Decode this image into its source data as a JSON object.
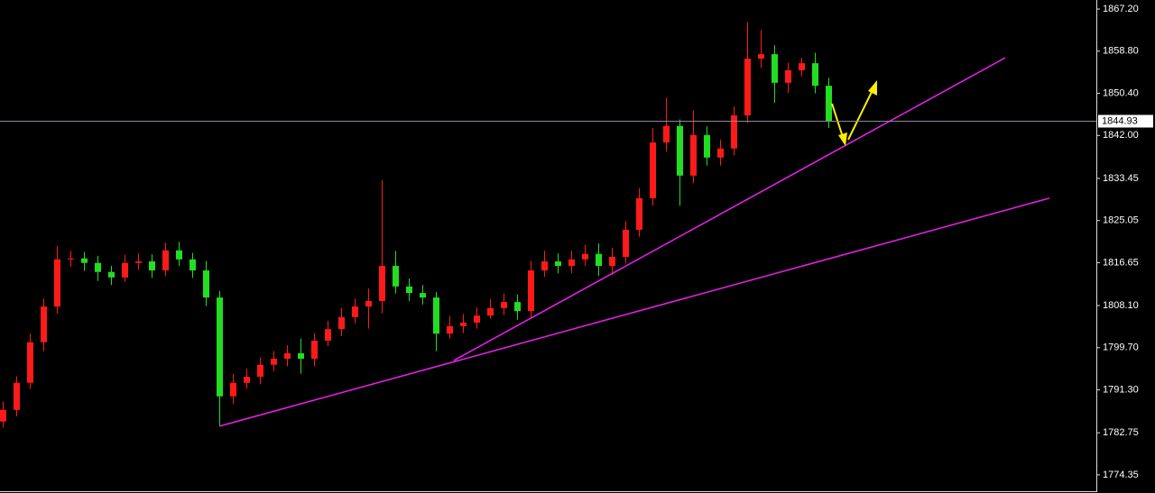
{
  "chart_data": {
    "type": "candlestick",
    "up_color": "#ff1a1a",
    "down_color": "#22dd22",
    "xlim": [
      -0.2,
      80.8
    ],
    "ylim": [
      1771.1,
      1869.0
    ],
    "yticks": [
      {
        "value": 1867.2,
        "label": "1867.20"
      },
      {
        "value": 1858.8,
        "label": "1858.80"
      },
      {
        "value": 1850.4,
        "label": "1850.40"
      },
      {
        "value": 1842,
        "label": "1842.00"
      },
      1833.45,
      1825.05,
      1816.65,
      {
        "value": 1808.1,
        "label": "1808.10"
      },
      {
        "value": 1799.7,
        "label": "1799.70"
      },
      {
        "value": 1791.3,
        "label": "1791.30"
      },
      1782.75,
      1774.35
    ],
    "current_price": 1844.93,
    "open": [
      1785.0,
      1787.3,
      1792.7,
      1800.8,
      1807.9,
      1817.3,
      1817.5,
      1816.6,
      1814.8,
      1813.7,
      1816.6,
      1816.9,
      1815.1,
      1819.1,
      1817.3,
      1815.1,
      1809.7,
      1790.0,
      1792.7,
      1793.9,
      1796.3,
      1797.5,
      1798.6,
      1797.5,
      1801.1,
      1803.4,
      1805.8,
      1807.9,
      1809.0,
      1816.0,
      1811.9,
      1810.6,
      1809.7,
      1802.5,
      1804.0,
      1804.7,
      1806.1,
      1807.6,
      1808.8,
      1807.0,
      1815.1,
      1816.9,
      1816.0,
      1817.3,
      1818.4,
      1816.0,
      1817.8,
      1823.2,
      1829.5,
      1840.6,
      1843.9,
      1834.0,
      1842.1,
      1837.6,
      1839.4,
      1846.0,
      1857.3,
      1858.2,
      1852.5,
      1855.0,
      1856.4,
      1851.9
    ],
    "high": [
      1789,
      1794,
      1802.5,
      1809.5,
      1820,
      1819,
      1818.8,
      1818,
      1816,
      1818.2,
      1818.5,
      1818.3,
      1820.6,
      1820.8,
      1818.6,
      1817,
      1811,
      1794.5,
      1795.5,
      1797.8,
      1799,
      1800.2,
      1801.5,
      1802.6,
      1805,
      1807.6,
      1809.5,
      1811.5,
      1833.1,
      1819,
      1813.5,
      1812.2,
      1810.8,
      1806,
      1806.4,
      1807.8,
      1809.4,
      1810.5,
      1810.3,
      1817,
      1819,
      1818.5,
      1819,
      1820.2,
      1820.5,
      1819.6,
      1825,
      1831.5,
      1843.5,
      1849.5,
      1845.2,
      1847,
      1843.8,
      1841.2,
      1847.8,
      1864.6,
      1863,
      1860,
      1856.5,
      1857.5,
      1858.5,
      1853.5
    ],
    "low": [
      1783.8,
      1786,
      1791.5,
      1799,
      1806.5,
      1815.8,
      1815,
      1813,
      1812.2,
      1812.8,
      1815.2,
      1813.6,
      1814,
      1816,
      1813.6,
      1808,
      1784.1,
      1788.5,
      1791.5,
      1792.4,
      1795,
      1796,
      1794.5,
      1796,
      1800,
      1802,
      1804.5,
      1803.5,
      1806.5,
      1810.5,
      1809,
      1808.3,
      1799.0,
      1801.5,
      1802.6,
      1803.5,
      1805.5,
      1806.2,
      1805.3,
      1805.5,
      1813.8,
      1814.5,
      1814.6,
      1816,
      1814,
      1814.2,
      1816.5,
      1821.8,
      1828,
      1838.8,
      1828.0,
      1832.5,
      1836,
      1836,
      1838,
      1844.5,
      1855.5,
      1848.5,
      1850.5,
      1853.8,
      1850.4,
      1843.5
    ],
    "close": [
      1787.3,
      1792.7,
      1800.8,
      1807.9,
      1817.3,
      1817.5,
      1816.6,
      1814.8,
      1813.7,
      1816.6,
      1816.9,
      1815.1,
      1819.1,
      1817.3,
      1815.1,
      1809.7,
      1790.0,
      1792.7,
      1793.9,
      1796.3,
      1797.5,
      1798.6,
      1797.5,
      1801.1,
      1803.4,
      1805.8,
      1807.9,
      1809.0,
      1816.0,
      1811.9,
      1810.6,
      1809.7,
      1802.5,
      1804.0,
      1804.7,
      1806.1,
      1807.6,
      1808.8,
      1807.0,
      1815.1,
      1816.9,
      1816.0,
      1817.3,
      1818.4,
      1816.0,
      1817.8,
      1823.2,
      1829.5,
      1840.6,
      1843.9,
      1834.0,
      1842.1,
      1837.6,
      1839.4,
      1846.0,
      1857.3,
      1858.2,
      1852.5,
      1855.0,
      1856.4,
      1851.9,
      1844.8
    ],
    "trendline_color": "#e020e0",
    "trendlines": [
      {
        "x": [
          16,
          77.33
        ],
        "y": [
          1784.05,
          1829.5
        ]
      },
      {
        "x": [
          33.33,
          74.07
        ],
        "y": [
          1797.16,
          1857.5
        ]
      }
    ]
  }
}
